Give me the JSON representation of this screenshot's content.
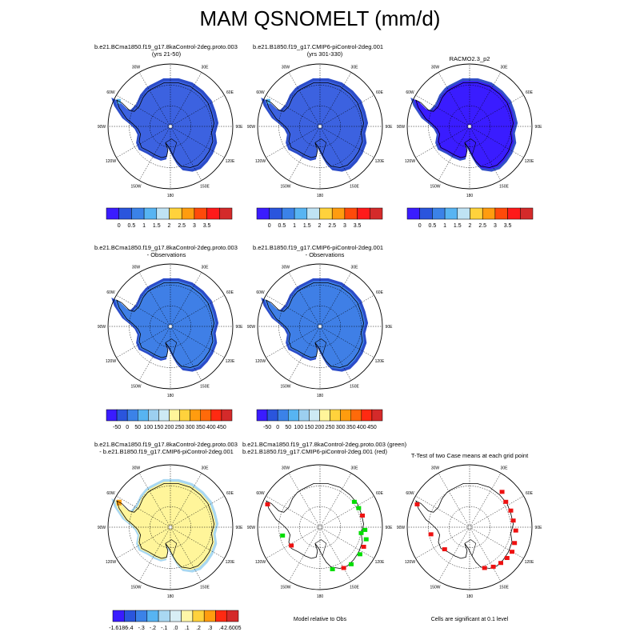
{
  "title": "MAM QSNOMELT (mm/d)",
  "colors": {
    "mean_scale": [
      "#3a1cff",
      "#2a55dd",
      "#3b82e8",
      "#57b4f2",
      "#bfe3f4",
      "#ffd23c",
      "#ff9c0f",
      "#ff4a0a",
      "#ff1a1a",
      "#d42a2a"
    ],
    "diff_scale": [
      "#3a1cff",
      "#2a55dd",
      "#3b82e8",
      "#57b4f2",
      "#9ccff0",
      "#cdeaf4",
      "#fff59a",
      "#ffd23c",
      "#ff9c0f",
      "#ff6a0a",
      "#ff2a12",
      "#d42a2a"
    ],
    "sig_scale": [
      "#3a1cff",
      "#2a55dd",
      "#3b82e8",
      "#57b4f2",
      "#a9d8f2",
      "#d8eef5",
      "#fff7a8",
      "#ffd23c",
      "#ff9c0f",
      "#ff2a12",
      "#d42a2a"
    ],
    "model_green": "#00dd00",
    "model_red": "#ee1111"
  },
  "lon_labels": [
    "30W",
    "30E",
    "60W",
    "60E",
    "90W",
    "90E",
    "120W",
    "120E",
    "150W",
    "150E",
    "180"
  ],
  "panels": [
    {
      "id": "p1",
      "title1": "b.e21.BCma1850.f19_g17.8kaControl-2deg.proto.003",
      "title2": "(yrs 21-50)",
      "fill": "#3c62e0",
      "edge": "#2b4cc9"
    },
    {
      "id": "p2",
      "title1": "b.e21.B1850.f19_g17.CMIP6-piControl-2deg.001",
      "title2": "(yrs 301-330)",
      "fill": "#3c62e0",
      "edge": "#2b4cc9"
    },
    {
      "id": "p3",
      "title1": "RACMO2.3_p2",
      "title2": "",
      "fill": "#3a1cff",
      "edge": "#3250c8"
    },
    {
      "id": "p4",
      "title1": "b.e21.BCma1850.f19_g17.8kaControl-2deg.proto.003",
      "title2": "- Observations",
      "fill": "#3f7fe6",
      "edge": "#2b4cc9"
    },
    {
      "id": "p5",
      "title1": "b.e21.B1850.f19_g17.CMIP6-piControl-2deg.001",
      "title2": "- Observations",
      "fill": "#3f7fe6",
      "edge": "#2b4cc9"
    },
    {
      "id": "p6",
      "title1": "b.e21.BCma1850.f19_g17.8kaControl-2deg.proto.003",
      "title2": "- b.e21.B1850.f19_g17.CMIP6-piControl-2deg.001",
      "fill": "#fff59a",
      "edge": "#a9d8f2"
    },
    {
      "id": "p7",
      "title1": "b.e21.BCma1850.f19_g17.8kaControl-2deg.proto.003 (green)",
      "title2": "b.e21.B1850.f19_g17.CMIP6-piControl-2deg.001 (red)",
      "note": "Model relative to Obs"
    },
    {
      "id": "p8",
      "title1": "T-Test of two Case means at each grid point",
      "title2": "",
      "note": "Cells are significant at 0.1 level"
    }
  ],
  "chart_data": [
    {
      "type": "heatmap",
      "title": "b.e21.BCma1850.f19_g17.8kaControl-2deg.proto.003 (yrs 21-50)",
      "colorbar_labels": [
        "0",
        "0.5",
        "1",
        "1.5",
        "2",
        "2.5",
        "3",
        "3.5"
      ],
      "interior_value_approx": 0.25
    },
    {
      "type": "heatmap",
      "title": "b.e21.B1850.f19_g17.CMIP6-piControl-2deg.001 (yrs 301-330)",
      "colorbar_labels": [
        "0",
        "0.5",
        "1",
        "1.5",
        "2",
        "2.5",
        "3",
        "3.5"
      ],
      "interior_value_approx": 0.25
    },
    {
      "type": "heatmap",
      "title": "RACMO2.3_p2",
      "colorbar_labels": [
        "0",
        "0.5",
        "1",
        "1.5",
        "2",
        "2.5",
        "3",
        "3.5"
      ],
      "interior_value_approx": -0.1
    },
    {
      "type": "heatmap",
      "title": "b.e21.BCma1850.f19_g17.8kaControl-2deg.proto.003 - Observations",
      "colorbar_labels": [
        "-50",
        "0",
        "50",
        "100",
        "150",
        "200",
        "250",
        "300",
        "350",
        "400",
        "450"
      ],
      "interior_value_approx": 0
    },
    {
      "type": "heatmap",
      "title": "b.e21.B1850.f19_g17.CMIP6-piControl-2deg.001 - Observations",
      "colorbar_labels": [
        "-50",
        "0",
        "50",
        "100",
        "150",
        "200",
        "250",
        "300",
        "350",
        "400",
        "450"
      ],
      "interior_value_approx": 0
    },
    {
      "type": "heatmap",
      "title": "b.e21.BCma1850.f19_g17.8kaControl-2deg.proto.003 - b.e21.B1850.f19_g17.CMIP6-piControl-2deg.001",
      "colorbar_labels": [
        "-1.6186",
        "-.4",
        "-.3",
        "-.2",
        "-.1",
        ".0",
        ".1",
        ".2",
        ".3",
        ".4",
        "2.6005"
      ],
      "interior_value_approx": 0.05
    },
    {
      "type": "heatmap",
      "title": "Model relative to Obs",
      "series": [
        {
          "name": "green",
          "value": "b.e21.BCma1850.f19_g17.8kaControl-2deg.proto.003"
        },
        {
          "name": "red",
          "value": "b.e21.B1850.f19_g17.CMIP6-piControl-2deg.001"
        }
      ]
    },
    {
      "type": "heatmap",
      "title": "T-Test of two Case means at each grid point",
      "annotation": "Cells are significant at 0.1 level"
    }
  ]
}
